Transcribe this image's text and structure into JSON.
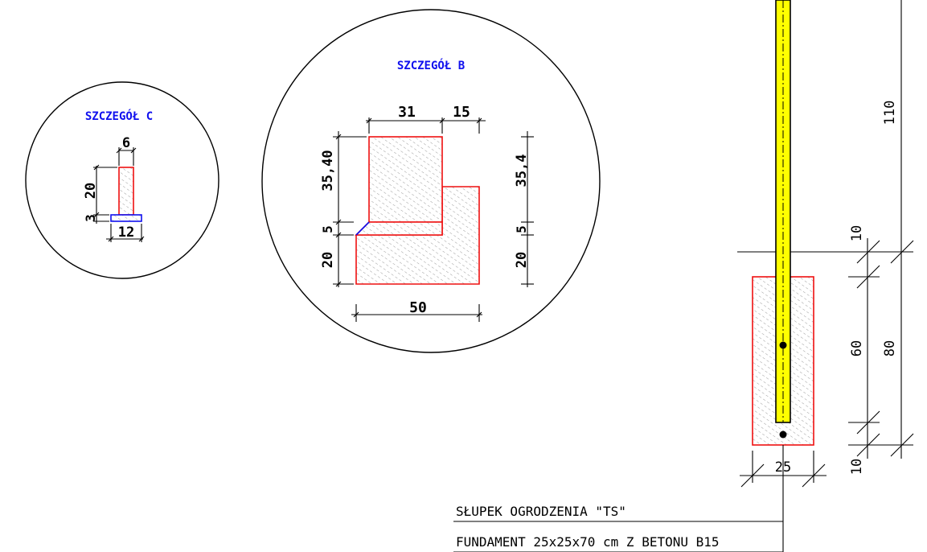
{
  "detail_c": {
    "title": "SZCZEGÓŁ  C",
    "dims": {
      "top_width": "6",
      "stem_height": "20",
      "base_height": "3",
      "base_width": "12"
    }
  },
  "detail_b": {
    "title": "SZCZEGÓŁ  B",
    "dims": {
      "top_left": "31",
      "top_right": "15",
      "left_upper": "35,40",
      "left_mid": "5",
      "left_lower": "20",
      "right_upper": "35,4",
      "right_mid": "5",
      "right_lower": "20",
      "bottom": "50"
    }
  },
  "post": {
    "dims": {
      "above": "110",
      "top_offset": "10",
      "embed": "60",
      "total_foundation": "80",
      "bottom_offset": "10",
      "width": "25"
    }
  },
  "labels": {
    "line1": "SŁUPEK OGRODZENIA \"TS\"",
    "line2": "FUNDAMENT 25x25x70 cm Z BETONU B15"
  },
  "colors": {
    "outline": "#ee1111",
    "title": "#1010ee",
    "post_fill": "#ffff00",
    "hatch": "#9a9a9a"
  }
}
